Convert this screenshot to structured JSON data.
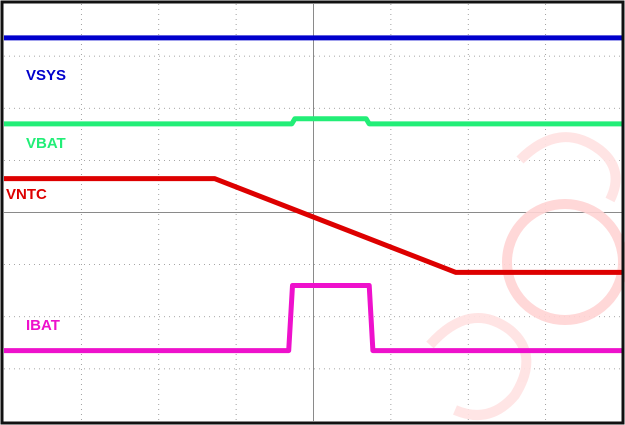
{
  "chart_data": {
    "type": "line",
    "title": "",
    "xlabel": "",
    "ylabel": "",
    "grid": true,
    "grid_divisions": {
      "x": 8,
      "y": 8
    },
    "xlim": [
      0,
      10
    ],
    "ylim": [
      0,
      8
    ],
    "series": [
      {
        "name": "VSYS",
        "color": "#0000cc",
        "x": [
          0,
          10
        ],
        "y": [
          7.35,
          7.35
        ]
      },
      {
        "name": "VBAT",
        "color": "#22ee77",
        "x": [
          0,
          4.65,
          4.7,
          5.85,
          5.9,
          10
        ],
        "y": [
          5.7,
          5.7,
          5.8,
          5.8,
          5.7,
          5.7
        ]
      },
      {
        "name": "VNTC",
        "color": "#dd0000",
        "x": [
          0,
          3.4,
          7.3,
          10
        ],
        "y": [
          4.65,
          4.65,
          2.85,
          2.85
        ]
      },
      {
        "name": "IBAT",
        "color": "#ee11cc",
        "x": [
          0,
          4.6,
          4.66,
          5.9,
          5.96,
          10
        ],
        "y": [
          1.35,
          1.35,
          2.6,
          2.6,
          1.35,
          1.35
        ]
      }
    ]
  }
}
